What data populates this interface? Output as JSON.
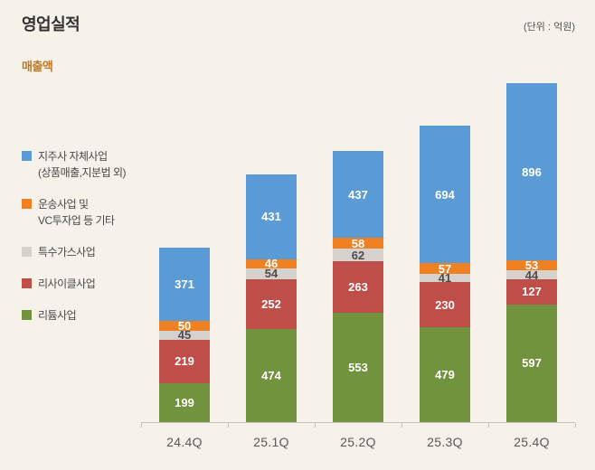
{
  "header": {
    "title": "영업실적",
    "unit": "(단위 : 억원)"
  },
  "section": {
    "label": "매출액"
  },
  "chart_data": {
    "type": "bar",
    "subtype": "stacked",
    "title": "영업실적 매출액",
    "unit": "억원",
    "categories": [
      "24.4Q",
      "25.1Q",
      "25.2Q",
      "25.3Q",
      "25.4Q"
    ],
    "series": [
      {
        "name": "리튬사업",
        "color": "#71933d",
        "label_color": "#ffffff",
        "values": [
          199,
          474,
          553,
          479,
          597
        ]
      },
      {
        "name": "리사이클사업",
        "color": "#bf4d48",
        "label_color": "#ffffff",
        "values": [
          219,
          252,
          263,
          230,
          127
        ]
      },
      {
        "name": "특수가스사업",
        "color": "#d5d1cd",
        "label_color": "#4d4d4d",
        "values": [
          45,
          54,
          62,
          41,
          44
        ]
      },
      {
        "name": "운송사업 및 VC투자업 등 기타",
        "color": "#ef8122",
        "label_color": "#ffffff",
        "values": [
          50,
          46,
          58,
          57,
          53
        ]
      },
      {
        "name": "지주사 자체사업 (상품매출,지분법 외)",
        "color": "#5b9bd5",
        "label_color": "#ffffff",
        "values": [
          371,
          431,
          437,
          694,
          896
        ]
      }
    ],
    "legend": [
      {
        "line1": "지주사 자체사업",
        "line2": "(상품매출,지분법 외)",
        "color": "#5b9bd5"
      },
      {
        "line1": "운송사업 및",
        "line2": "VC투자업 등 기타",
        "color": "#ef8122"
      },
      {
        "line1": "특수가스사업",
        "line2": "",
        "color": "#d5d1cd"
      },
      {
        "line1": "리사이클사업",
        "line2": "",
        "color": "#bf4d48"
      },
      {
        "line1": "리튬사업",
        "line2": "",
        "color": "#71933d"
      }
    ],
    "ylim": [
      0,
      1750
    ],
    "grid": false,
    "legend_position": "left",
    "xlabel": "",
    "ylabel": ""
  }
}
